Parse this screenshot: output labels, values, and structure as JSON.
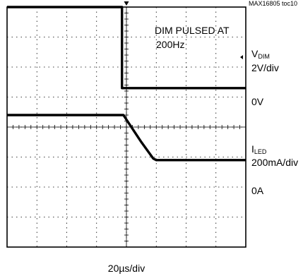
{
  "figure_id": "MAX16805 toc10",
  "annotation": {
    "line1": "DIM PULSED AT",
    "line2": "200Hz"
  },
  "channels": {
    "vdim": {
      "sym": "V",
      "sub": "DIM",
      "scale": "2V/div",
      "ground": "0V"
    },
    "iled": {
      "sym": "I",
      "sub": "LED",
      "scale": "200mA/div",
      "ground": "0A"
    }
  },
  "timebase": "20µs/div",
  "colors": {
    "trace": "#000000",
    "grid": "#000000",
    "background": "#ffffff"
  },
  "chart_data": {
    "type": "line",
    "xlabel": "20µs/div",
    "grid": {
      "x_divisions": 8,
      "y_divisions": 8,
      "minor_ticks_per_div": 5
    },
    "series": [
      {
        "name": "VDIM",
        "unit_per_div": "2V/div",
        "points": [
          [
            0,
            8.0
          ],
          [
            3.85,
            8.0
          ],
          [
            3.85,
            5.3
          ],
          [
            8,
            5.3
          ]
        ]
      },
      {
        "name": "ILED",
        "unit_per_div": "200mA/div",
        "points": [
          [
            0,
            4.4
          ],
          [
            3.9,
            4.4
          ],
          [
            4.0,
            4.25
          ],
          [
            4.5,
            3.5
          ],
          [
            4.9,
            2.95
          ],
          [
            5.0,
            2.9
          ],
          [
            8,
            2.9
          ]
        ]
      }
    ]
  }
}
